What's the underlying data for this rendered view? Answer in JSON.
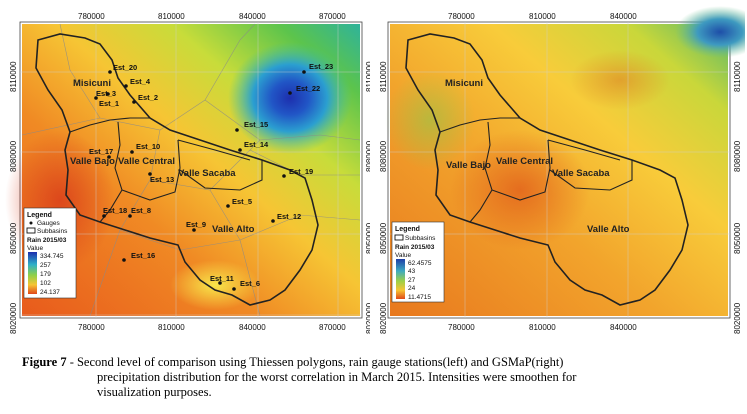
{
  "left_map": {
    "x_ticks": [
      "780000",
      "810000",
      "840000",
      "870000"
    ],
    "y_ticks": [
      "8110000",
      "8080000",
      "8050000",
      "8020000"
    ],
    "subbasins": [
      "Misicuni",
      "Valle Bajo",
      "Valle Central",
      "Valle Sacaba",
      "Valle Alto"
    ],
    "gauges": [
      "Est_20",
      "Est_4",
      "Est_3",
      "Est_2",
      "Est_1",
      "Est_23",
      "Est_22",
      "Est_15",
      "Est_14",
      "Est_10",
      "Est_17",
      "Est_13",
      "Est_19",
      "Est_5",
      "Est_18",
      "Est_8",
      "Est_9",
      "Est_12",
      "Est_16",
      "Est_11",
      "Est_6"
    ],
    "legend": {
      "title": "Legend",
      "gauges_label": "Gauges",
      "subbasins_label": "Subbasins",
      "raster_label": "Rain 2015/03",
      "value_label": "Value",
      "values": [
        "334.745",
        "257",
        "179",
        "102",
        "24.137"
      ]
    }
  },
  "right_map": {
    "x_ticks": [
      "780000",
      "810000",
      "840000"
    ],
    "y_ticks": [
      "8110000",
      "8080000",
      "8050000",
      "8020000"
    ],
    "subbasins": [
      "Misicuni",
      "Valle Bajo",
      "Valle Central",
      "Valle Sacaba",
      "Valle Alto"
    ],
    "legend": {
      "title": "Legend",
      "subbasins_label": "Subbasins",
      "raster_label": "Rain 2015/03",
      "value_label": "Value",
      "values": [
        "62.4575",
        "43",
        "27",
        "24",
        "11.4715"
      ]
    }
  },
  "caption": {
    "figure_label": "Figure",
    "number": "7",
    "line1": " - Second level of comparison using Thiessen polygons, rain gauge stations(left) and GSMaP(right)",
    "line2": "precipitation distribution for the worst correlation in March 2015. Intensities were smoothen for",
    "line3": "visualization purposes."
  }
}
